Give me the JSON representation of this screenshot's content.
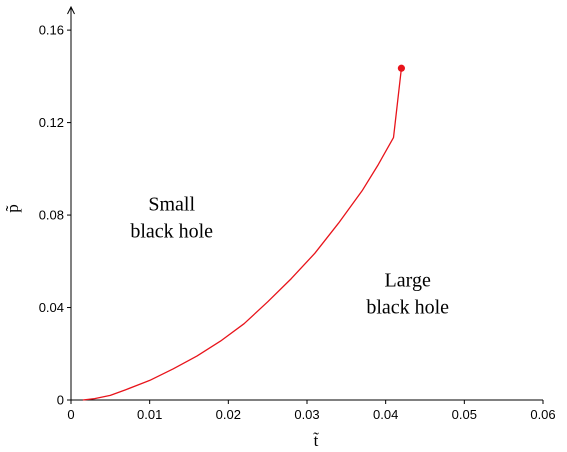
{
  "chart_data": {
    "type": "line",
    "title": "",
    "xlabel": "t̃",
    "ylabel": "p̃",
    "xlim": [
      0,
      0.06
    ],
    "ylim": [
      0,
      0.17
    ],
    "x_ticks": [
      0,
      0.01,
      0.02,
      0.03,
      0.04,
      0.05,
      0.06
    ],
    "x_tick_labels": [
      "0",
      "0.01",
      "0.02",
      "0.03",
      "0.04",
      "0.05",
      "0.06"
    ],
    "y_ticks": [
      0,
      0.04,
      0.08,
      0.12,
      0.16
    ],
    "y_tick_labels": [
      "0",
      "0.04",
      "0.08",
      "0.12",
      "0.16"
    ],
    "grid": false,
    "series": [
      {
        "color": "#e8141b",
        "x": [
          0.0015,
          0.003,
          0.005,
          0.007,
          0.01,
          0.013,
          0.016,
          0.019,
          0.022,
          0.025,
          0.028,
          0.031,
          0.034,
          0.037,
          0.039,
          0.041,
          0.042
        ],
        "y": [
          0,
          0.0006,
          0.002,
          0.0045,
          0.0085,
          0.0135,
          0.019,
          0.0255,
          0.033,
          0.0425,
          0.0525,
          0.0635,
          0.0765,
          0.0905,
          0.1015,
          0.1135,
          0.1435
        ]
      }
    ],
    "critical_point": {
      "x": 0.042,
      "y": 0.1435,
      "color": "#e8141b"
    },
    "annotations": [
      {
        "lines": [
          "Small",
          "black hole"
        ],
        "x": 0.0128,
        "y": 0.082
      },
      {
        "lines": [
          "Large",
          "black hole"
        ],
        "x": 0.0428,
        "y": 0.049
      }
    ]
  }
}
